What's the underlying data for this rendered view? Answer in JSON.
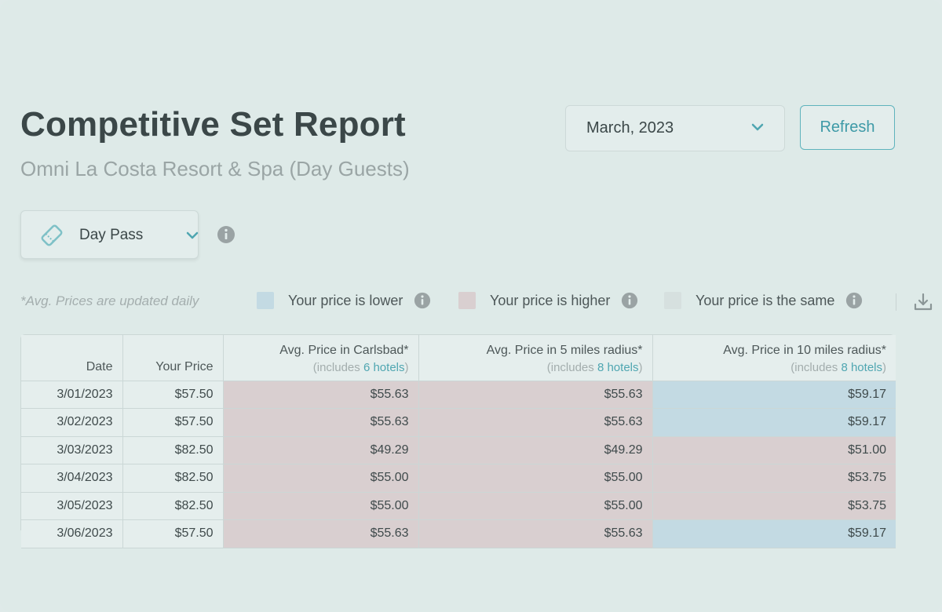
{
  "colors": {
    "higher": "#d9cfd0",
    "lower": "#c3dae3",
    "same": "#d6e0df",
    "accent": "#4fa6b1"
  },
  "header": {
    "title": "Competitive Set Report",
    "subtitle": "Omni La Costa Resort & Spa (Day Guests)",
    "month": "March, 2023",
    "refresh_label": "Refresh"
  },
  "product": {
    "label": "Day Pass",
    "icon": "ticket-icon"
  },
  "legend": {
    "note": "*Avg. Prices are updated daily",
    "lower": "Your price is lower",
    "higher": "Your price is higher",
    "same": "Your price is the same"
  },
  "table": {
    "headers": {
      "date": "Date",
      "your_price": "Your Price",
      "carlsbad": "Avg. Price in Carlsbad*",
      "carlsbad_sub_prefix": "(includes ",
      "carlsbad_sub_link": "6 hotels",
      "radius5": "Avg. Price in 5 miles radius*",
      "radius5_sub_prefix": "(includes ",
      "radius5_sub_link": "8 hotels",
      "radius10": "Avg. Price in 10 miles radius*",
      "radius10_sub_prefix": "(includes ",
      "radius10_sub_link": "8 hotels",
      "sub_suffix": ")"
    },
    "rows": [
      {
        "date": "3/01/2023",
        "price": "$57.50",
        "carlsbad": "$55.63",
        "carlsbad_status": "higher",
        "r5": "$55.63",
        "r5_status": "higher",
        "r10": "$59.17",
        "r10_status": "lower"
      },
      {
        "date": "3/02/2023",
        "price": "$57.50",
        "carlsbad": "$55.63",
        "carlsbad_status": "higher",
        "r5": "$55.63",
        "r5_status": "higher",
        "r10": "$59.17",
        "r10_status": "lower"
      },
      {
        "date": "3/03/2023",
        "price": "$82.50",
        "carlsbad": "$49.29",
        "carlsbad_status": "higher",
        "r5": "$49.29",
        "r5_status": "higher",
        "r10": "$51.00",
        "r10_status": "higher"
      },
      {
        "date": "3/04/2023",
        "price": "$82.50",
        "carlsbad": "$55.00",
        "carlsbad_status": "higher",
        "r5": "$55.00",
        "r5_status": "higher",
        "r10": "$53.75",
        "r10_status": "higher"
      },
      {
        "date": "3/05/2023",
        "price": "$82.50",
        "carlsbad": "$55.00",
        "carlsbad_status": "higher",
        "r5": "$55.00",
        "r5_status": "higher",
        "r10": "$53.75",
        "r10_status": "higher"
      },
      {
        "date": "3/06/2023",
        "price": "$57.50",
        "carlsbad": "$55.63",
        "carlsbad_status": "higher",
        "r5": "$55.63",
        "r5_status": "higher",
        "r10": "$59.17",
        "r10_status": "lower"
      }
    ]
  }
}
